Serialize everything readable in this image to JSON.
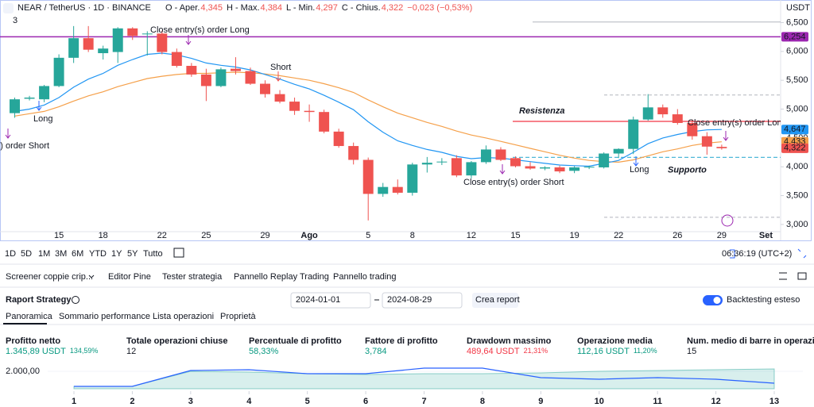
{
  "header": {
    "symbol": "NEAR / TetherUS · 1D · BINANCE",
    "open_label": "O - Aper.",
    "open": "4,345",
    "high_label": "H - Max.",
    "high": "4,384",
    "low_label": "L - Min.",
    "low": "4,297",
    "close_label": "C - Chius.",
    "close": "4,322",
    "change": "−0,023 (−0,53%)",
    "indicators": "3",
    "currency": "USDT"
  },
  "chart": {
    "type": "candlestick",
    "up_color": "#26a69a",
    "down_color": "#ef5350",
    "xlim": [
      "2024-07-11",
      "2024-09-02"
    ],
    "ylim": [
      2875,
      6892
    ],
    "yticks": [
      {
        "value": 3000,
        "label": "3,000"
      },
      {
        "value": 3500,
        "label": "3,500"
      },
      {
        "value": 4000,
        "label": "4,000"
      },
      {
        "value": 4500,
        "label": "4,500"
      },
      {
        "value": 5000,
        "label": "5,000"
      },
      {
        "value": 5500,
        "label": "5,500"
      },
      {
        "value": 6000,
        "label": "6,000"
      },
      {
        "value": 6500,
        "label": "6,500"
      }
    ],
    "xticks": [
      {
        "value": "2024-07-15",
        "label": "15"
      },
      {
        "value": "2024-07-18",
        "label": "18"
      },
      {
        "value": "2024-07-22",
        "label": "22"
      },
      {
        "value": "2024-07-25",
        "label": "25"
      },
      {
        "value": "2024-07-29",
        "label": "29"
      },
      {
        "value": "2024-08-01",
        "label": "Ago"
      },
      {
        "value": "2024-08-05",
        "label": "5"
      },
      {
        "value": "2024-08-08",
        "label": "8"
      },
      {
        "value": "2024-08-12",
        "label": "12"
      },
      {
        "value": "2024-08-15",
        "label": "15"
      },
      {
        "value": "2024-08-19",
        "label": "19"
      },
      {
        "value": "2024-08-22",
        "label": "22"
      },
      {
        "value": "2024-08-26",
        "label": "26"
      },
      {
        "value": "2024-08-29",
        "label": "29"
      },
      {
        "value": "2024-09-01",
        "label": "Set"
      }
    ],
    "dates": [
      "2024-07-12",
      "2024-07-13",
      "2024-07-14",
      "2024-07-15",
      "2024-07-16",
      "2024-07-17",
      "2024-07-18",
      "2024-07-19",
      "2024-07-20",
      "2024-07-21",
      "2024-07-22",
      "2024-07-23",
      "2024-07-24",
      "2024-07-25",
      "2024-07-26",
      "2024-07-27",
      "2024-07-28",
      "2024-07-29",
      "2024-07-30",
      "2024-07-31",
      "2024-08-01",
      "2024-08-02",
      "2024-08-03",
      "2024-08-04",
      "2024-08-05",
      "2024-08-06",
      "2024-08-07",
      "2024-08-08",
      "2024-08-09",
      "2024-08-10",
      "2024-08-11",
      "2024-08-12",
      "2024-08-13",
      "2024-08-14",
      "2024-08-15",
      "2024-08-16",
      "2024-08-17",
      "2024-08-18",
      "2024-08-19",
      "2024-08-20",
      "2024-08-21",
      "2024-08-22",
      "2024-08-23",
      "2024-08-24",
      "2024-08-25",
      "2024-08-26",
      "2024-08-27",
      "2024-08-28",
      "2024-08-29"
    ],
    "ohlc": [
      [
        4930,
        5200,
        4850,
        5170
      ],
      [
        5180,
        5230,
        5150,
        5200
      ],
      [
        5170,
        5420,
        5120,
        5400
      ],
      [
        5400,
        5950,
        5380,
        5890
      ],
      [
        5890,
        6440,
        5800,
        6230
      ],
      [
        6230,
        6440,
        5990,
        6030
      ],
      [
        5970,
        6100,
        5860,
        6050
      ],
      [
        5990,
        6420,
        5800,
        6400
      ],
      [
        6400,
        6420,
        6200,
        6270
      ],
      [
        6300,
        6350,
        5930,
        6310
      ],
      [
        6310,
        6360,
        5950,
        5990
      ],
      [
        5990,
        6050,
        5720,
        5750
      ],
      [
        5750,
        5800,
        5560,
        5600
      ],
      [
        5600,
        5700,
        5140,
        5400
      ],
      [
        5400,
        5720,
        5380,
        5690
      ],
      [
        5700,
        5900,
        5600,
        5660
      ],
      [
        5660,
        5720,
        5420,
        5440
      ],
      [
        5440,
        5500,
        5200,
        5260
      ],
      [
        5260,
        5330,
        5100,
        5130
      ],
      [
        5130,
        5200,
        4900,
        4970
      ],
      [
        4970,
        5080,
        4780,
        4950
      ],
      [
        4950,
        4990,
        4580,
        4610
      ],
      [
        4610,
        4660,
        4330,
        4360
      ],
      [
        4360,
        4420,
        4040,
        4120
      ],
      [
        4120,
        4160,
        3070,
        3530
      ],
      [
        3530,
        3720,
        3480,
        3650
      ],
      [
        3650,
        3780,
        3520,
        3550
      ],
      [
        3550,
        4070,
        3500,
        4040
      ],
      [
        4040,
        4170,
        3900,
        4070
      ],
      [
        4080,
        4150,
        4030,
        4090
      ],
      [
        4150,
        4200,
        3820,
        3850
      ],
      [
        3850,
        4100,
        3800,
        4080
      ],
      [
        4080,
        4370,
        4050,
        4300
      ],
      [
        4300,
        4340,
        4100,
        4120
      ],
      [
        4150,
        4180,
        3990,
        4010
      ],
      [
        4010,
        4080,
        3950,
        3970
      ],
      [
        3970,
        4010,
        3940,
        3990
      ],
      [
        3990,
        4020,
        3890,
        3920
      ],
      [
        3930,
        4010,
        3890,
        3990
      ],
      [
        3990,
        4020,
        3960,
        4000
      ],
      [
        3990,
        4250,
        3970,
        4230
      ],
      [
        4230,
        4320,
        4150,
        4310
      ],
      [
        4310,
        4870,
        4220,
        4820
      ],
      [
        4820,
        5260,
        4800,
        5030
      ],
      [
        5030,
        5080,
        4850,
        4910
      ],
      [
        4910,
        5000,
        4730,
        4760
      ],
      [
        4760,
        4820,
        4470,
        4530
      ],
      [
        4530,
        4600,
        4210,
        4350
      ],
      [
        4345,
        4384,
        4297,
        4322
      ]
    ],
    "ma_fast": {
      "color": "#2196f3",
      "values": [
        4960,
        5000,
        5070,
        5200,
        5380,
        5520,
        5620,
        5760,
        5860,
        5950,
        5970,
        5940,
        5880,
        5800,
        5760,
        5730,
        5680,
        5600,
        5520,
        5430,
        5350,
        5240,
        5120,
        4990,
        4780,
        4600,
        4450,
        4370,
        4300,
        4250,
        4180,
        4140,
        4160,
        4150,
        4120,
        4090,
        4060,
        4030,
        4020,
        4010,
        4060,
        4110,
        4250,
        4400,
        4500,
        4560,
        4610,
        4640,
        4647
      ]
    },
    "ma_slow": {
      "color": "#f5a04a",
      "values": [
        4880,
        4920,
        4960,
        5040,
        5140,
        5230,
        5300,
        5390,
        5460,
        5530,
        5570,
        5600,
        5620,
        5620,
        5630,
        5640,
        5630,
        5610,
        5580,
        5540,
        5500,
        5440,
        5370,
        5290,
        5160,
        5040,
        4930,
        4850,
        4770,
        4700,
        4620,
        4550,
        4500,
        4440,
        4380,
        4320,
        4260,
        4200,
        4150,
        4110,
        4090,
        4080,
        4120,
        4190,
        4260,
        4310,
        4370,
        4410,
        4433
      ]
    },
    "levels": [
      {
        "name": "Resistenza",
        "value": 4787,
        "color": "#f23645"
      },
      {
        "name": "Supporto",
        "value": 4163,
        "color": "#4fb8d8"
      }
    ],
    "guide_levels": [
      6510,
      5245,
      3125
    ],
    "purple_level": {
      "value": 6254,
      "color": "#9c27b0"
    },
    "price_labels": [
      {
        "value": 6254,
        "label": "6,254",
        "color": "#9c27b0"
      },
      {
        "value": 4647,
        "label": "4,647",
        "color": "#2196f3"
      },
      {
        "value": 4433,
        "label": "4,433",
        "color": "#f5a04a"
      },
      {
        "value": 4322,
        "label": "4,322",
        "color": "#ef5350"
      }
    ],
    "annotations": [
      "Close entry(s) order Long",
      "Short",
      "Long",
      "Close entry(s) order Short",
      "Close entry(s) order Short",
      "Long",
      "Close entry(s) order Long"
    ]
  },
  "timeframes": [
    "1D",
    "5D",
    "1M",
    "3M",
    "6M",
    "YTD",
    "1Y",
    "5Y",
    "Tutto"
  ],
  "clock": "06:36:19 (UTC+2)",
  "tabs": [
    "Screener coppie crip...",
    "Editor Pine",
    "Tester strategia",
    "Pannello Replay Trading",
    "Pannello trading"
  ],
  "report": {
    "title": "Raport Strategy",
    "start": "2024-01-01",
    "end": "2024-08-29",
    "button": "Crea report",
    "toggle": "Backtesting esteso"
  },
  "subtabs": [
    "Panoramica",
    "Sommario performance",
    "Lista operazioni",
    "Proprietà"
  ],
  "metrics": [
    {
      "label": "Profitto netto",
      "value": "1.345,89 USDT",
      "extra": "134,59%",
      "color": "#089981"
    },
    {
      "label": "Totale operazioni chiuse",
      "value": "12",
      "color": "#131722"
    },
    {
      "label": "Percentuale di profitto",
      "value": "58,33%",
      "color": "#089981"
    },
    {
      "label": "Fattore di profitto",
      "value": "3,784",
      "color": "#089981"
    },
    {
      "label": "Drawdown massimo",
      "value": "489,64 USDT",
      "extra": "21,31%",
      "color": "#f23645"
    },
    {
      "label": "Operazione media",
      "value": "112,16 USDT",
      "extra": "11,20%",
      "color": "#089981"
    },
    {
      "label": "Num. medio di barre in operazioni",
      "value": "15",
      "color": "#131722"
    }
  ],
  "equity_chart": {
    "type": "line",
    "x": [
      1,
      2,
      3,
      4,
      5,
      6,
      7,
      8,
      9,
      10,
      11,
      12,
      13
    ],
    "xticks": [
      1,
      2,
      3,
      4,
      5,
      6,
      7,
      8,
      9,
      10,
      11,
      12,
      13
    ],
    "xlim": [
      1,
      13
    ],
    "ylim": [
      900,
      2650
    ],
    "yticks": [
      {
        "value": 2000,
        "label": "2.000,00"
      }
    ],
    "series": [
      {
        "color": "#2962ff",
        "values": [
          1050,
          1050,
          2050,
          2100,
          1850,
          1850,
          2200,
          2200,
          1600,
          1500,
          1600,
          1500,
          1250
        ]
      },
      {
        "color": "#26a69a",
        "values": [
          1050,
          1050,
          2000,
          1950,
          1850,
          1800,
          1850,
          1850,
          1900,
          2000,
          2050,
          2100,
          2150
        ]
      }
    ]
  }
}
